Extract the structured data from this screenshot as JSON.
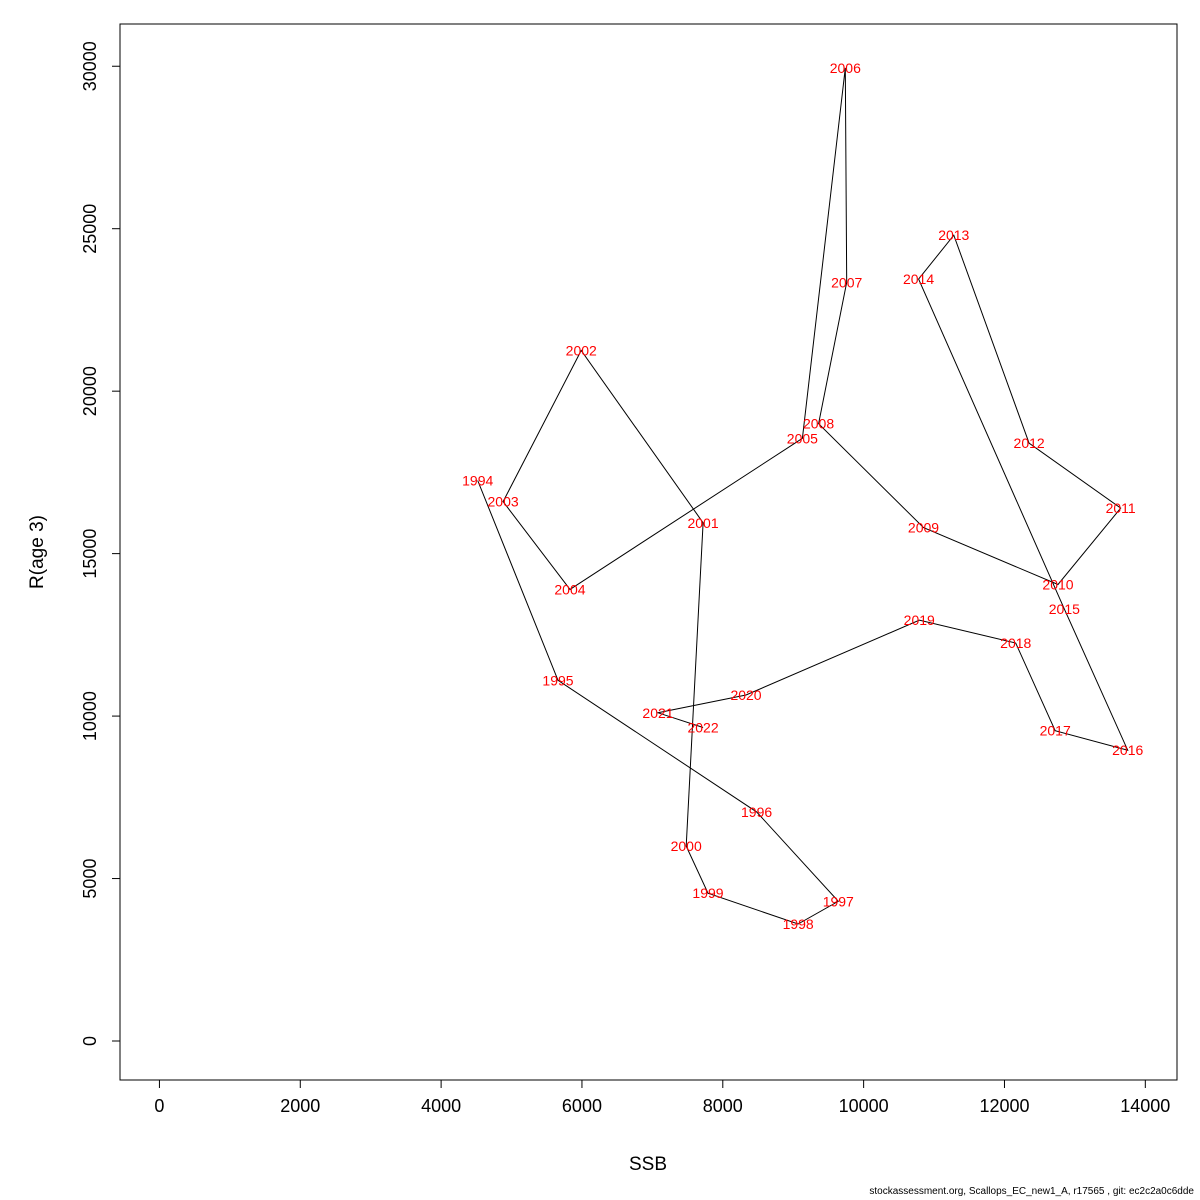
{
  "chart_data": {
    "type": "line",
    "xlabel": "SSB",
    "ylabel": "R(age 3)",
    "xlim": [
      -560,
      14450
    ],
    "ylim": [
      -1200,
      31300
    ],
    "xticks": [
      0,
      2000,
      4000,
      6000,
      8000,
      10000,
      12000,
      14000
    ],
    "yticks": [
      0,
      5000,
      10000,
      15000,
      20000,
      25000,
      30000
    ],
    "grid": false,
    "line_color": "#000000",
    "label_color": "#ff0000",
    "points": [
      {
        "year": "1994",
        "ssb": 4520,
        "r": 17250
      },
      {
        "year": "1995",
        "ssb": 5660,
        "r": 11100
      },
      {
        "year": "1996",
        "ssb": 8480,
        "r": 7050
      },
      {
        "year": "1997",
        "ssb": 9640,
        "r": 4300
      },
      {
        "year": "1998",
        "ssb": 9070,
        "r": 3600
      },
      {
        "year": "1999",
        "ssb": 7790,
        "r": 4550
      },
      {
        "year": "2000",
        "ssb": 7480,
        "r": 6000
      },
      {
        "year": "2001",
        "ssb": 7720,
        "r": 15950
      },
      {
        "year": "2002",
        "ssb": 5990,
        "r": 21250
      },
      {
        "year": "2003",
        "ssb": 4880,
        "r": 16600
      },
      {
        "year": "2004",
        "ssb": 5830,
        "r": 13900
      },
      {
        "year": "2005",
        "ssb": 9130,
        "r": 18550
      },
      {
        "year": "2006",
        "ssb": 9740,
        "r": 29950
      },
      {
        "year": "2007",
        "ssb": 9760,
        "r": 23350
      },
      {
        "year": "2008",
        "ssb": 9360,
        "r": 19000
      },
      {
        "year": "2009",
        "ssb": 10850,
        "r": 15800
      },
      {
        "year": "2010",
        "ssb": 12760,
        "r": 14050
      },
      {
        "year": "2011",
        "ssb": 13650,
        "r": 16400
      },
      {
        "year": "2012",
        "ssb": 12350,
        "r": 18400
      },
      {
        "year": "2013",
        "ssb": 11280,
        "r": 24800
      },
      {
        "year": "2014",
        "ssb": 10780,
        "r": 23450
      },
      {
        "year": "2015",
        "ssb": 12850,
        "r": 13300
      },
      {
        "year": "2016",
        "ssb": 13750,
        "r": 8950
      },
      {
        "year": "2017",
        "ssb": 12720,
        "r": 9550
      },
      {
        "year": "2018",
        "ssb": 12160,
        "r": 12250
      },
      {
        "year": "2019",
        "ssb": 10790,
        "r": 12950
      },
      {
        "year": "2020",
        "ssb": 8330,
        "r": 10650
      },
      {
        "year": "2021",
        "ssb": 7080,
        "r": 10100
      },
      {
        "year": "2022",
        "ssb": 7720,
        "r": 9650
      }
    ]
  },
  "footer": "stockassessment.org, Scallops_EC_new1_A, r17565 , git: ec2c2a0c6dde"
}
